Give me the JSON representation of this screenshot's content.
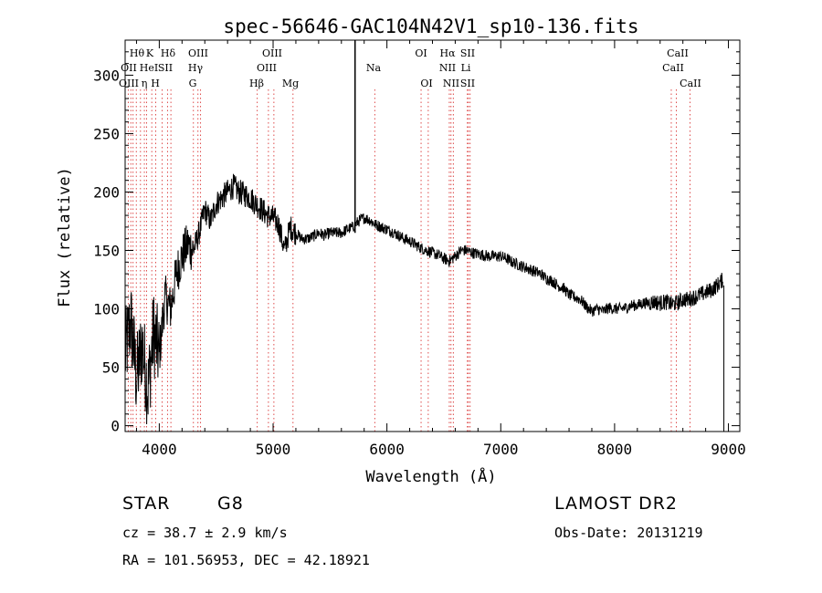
{
  "chart_data": {
    "type": "line",
    "title": "spec-56646-GAC104N42V1_sp10-136.fits",
    "xlabel": "Wavelength (Å)",
    "ylabel": "Flux (relative)",
    "xlim": [
      3700,
      9100
    ],
    "ylim": [
      -5,
      330
    ],
    "xticks": [
      4000,
      5000,
      6000,
      7000,
      8000,
      9000
    ],
    "yticks": [
      0,
      50,
      100,
      150,
      200,
      250,
      300
    ],
    "grid": false,
    "series": [
      {
        "x": [
          3700,
          3750,
          3800,
          3850,
          3900,
          3950,
          4000,
          4050,
          4100,
          4150,
          4200,
          4250,
          4300,
          4350,
          4400,
          4450,
          4500,
          4550,
          4600,
          4650,
          4700,
          4750,
          4800,
          4850,
          4900,
          4950,
          5000,
          5050,
          5100,
          5150,
          5200,
          5250,
          5300,
          5350,
          5400,
          5450,
          5500,
          5550,
          5600,
          5650,
          5700,
          5750,
          5800,
          5850,
          5900,
          5950,
          6000,
          6050,
          6100,
          6150,
          6200,
          6250,
          6300,
          6350,
          6400,
          6450,
          6500,
          6550,
          6600,
          6650,
          6700,
          6750,
          6800,
          6850,
          6900,
          6950,
          7000,
          7050,
          7100,
          7150,
          7200,
          7250,
          7300,
          7350,
          7400,
          7450,
          7500,
          7550,
          7600,
          7650,
          7700,
          7750,
          7800,
          7850,
          7900,
          7950,
          8000,
          8050,
          8100,
          8150,
          8200,
          8250,
          8300,
          8350,
          8400,
          8450,
          8500,
          8550,
          8600,
          8650,
          8700,
          8750,
          8800,
          8850,
          8900,
          8950
        ],
        "y": [
          60,
          90,
          40,
          70,
          30,
          80,
          60,
          110,
          100,
          130,
          145,
          155,
          150,
          165,
          185,
          175,
          190,
          195,
          200,
          205,
          200,
          198,
          195,
          190,
          185,
          180,
          178,
          172,
          150,
          170,
          165,
          160,
          160,
          162,
          165,
          163,
          165,
          165,
          165,
          168,
          170,
          175,
          178,
          176,
          172,
          170,
          168,
          166,
          163,
          160,
          158,
          155,
          152,
          150,
          148,
          146,
          143,
          141,
          145,
          150,
          150,
          148,
          147,
          146,
          145,
          145,
          145,
          143,
          140,
          138,
          136,
          134,
          132,
          130,
          126,
          124,
          120,
          118,
          112,
          110,
          108,
          102,
          98,
          100,
          98,
          101,
          100,
          100,
          101,
          103,
          103,
          105,
          105,
          106,
          105,
          106,
          104,
          105,
          108,
          108,
          110,
          112,
          114,
          116,
          120,
          125
        ]
      }
    ],
    "annotations": [
      "Hθ",
      "OII",
      "OIII",
      "K",
      "HeI",
      "η",
      "H",
      "Hδ",
      "SII",
      "OIII",
      "Hγ",
      "G",
      "OIII",
      "OIII",
      "Hβ",
      "Mg",
      "Na",
      "OI",
      "OI",
      "Hα",
      "NII",
      "NII",
      "SII",
      "Li",
      "SII",
      "CaII",
      "CaII",
      "CaII"
    ]
  },
  "info": {
    "object_class": "STAR",
    "subclass": "G8",
    "survey": "LAMOST DR2",
    "redshift": "cz = 38.7 ± 2.9 km/s",
    "obs_date": "Obs-Date: 20131219",
    "coords": "RA = 101.56953, DEC =  42.18921"
  }
}
